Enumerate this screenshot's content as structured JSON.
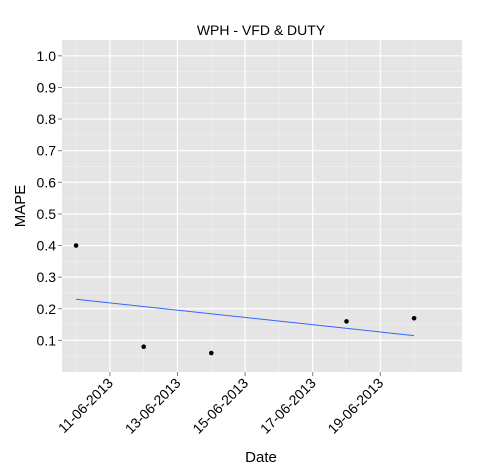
{
  "chart_data": {
    "type": "scatter",
    "title": "WPH -   VFD & DUTY",
    "xlabel": "Date",
    "ylabel": "MAPE",
    "x_tick_labels": [
      "11-06-2013",
      "13-06-2013",
      "15-06-2013",
      "17-06-2013",
      "19-06-2013"
    ],
    "y_tick_labels": [
      "0.1",
      "0.2",
      "0.3",
      "0.4",
      "0.5",
      "0.6",
      "0.7",
      "0.8",
      "0.9",
      "1.0"
    ],
    "ylim": [
      0.0,
      1.05
    ],
    "xlim": [
      "2013-06-09T14:00",
      "2013-06-21T10:00"
    ],
    "grid": true,
    "points": [
      {
        "x": "2013-06-10",
        "y": 0.4
      },
      {
        "x": "2013-06-12",
        "y": 0.08
      },
      {
        "x": "2013-06-14",
        "y": 0.06
      },
      {
        "x": "2013-06-18",
        "y": 0.16
      },
      {
        "x": "2013-06-20",
        "y": 0.17
      }
    ],
    "trend_line": {
      "start": {
        "x": "2013-06-10",
        "y": 0.23
      },
      "end": {
        "x": "2013-06-20",
        "y": 0.115
      }
    },
    "colors": {
      "panel_background": "#e5e5e5",
      "grid_major": "#ffffff",
      "grid_minor": "#f2f2f2",
      "point": "#000000",
      "trend_line": "#3366ff"
    }
  }
}
